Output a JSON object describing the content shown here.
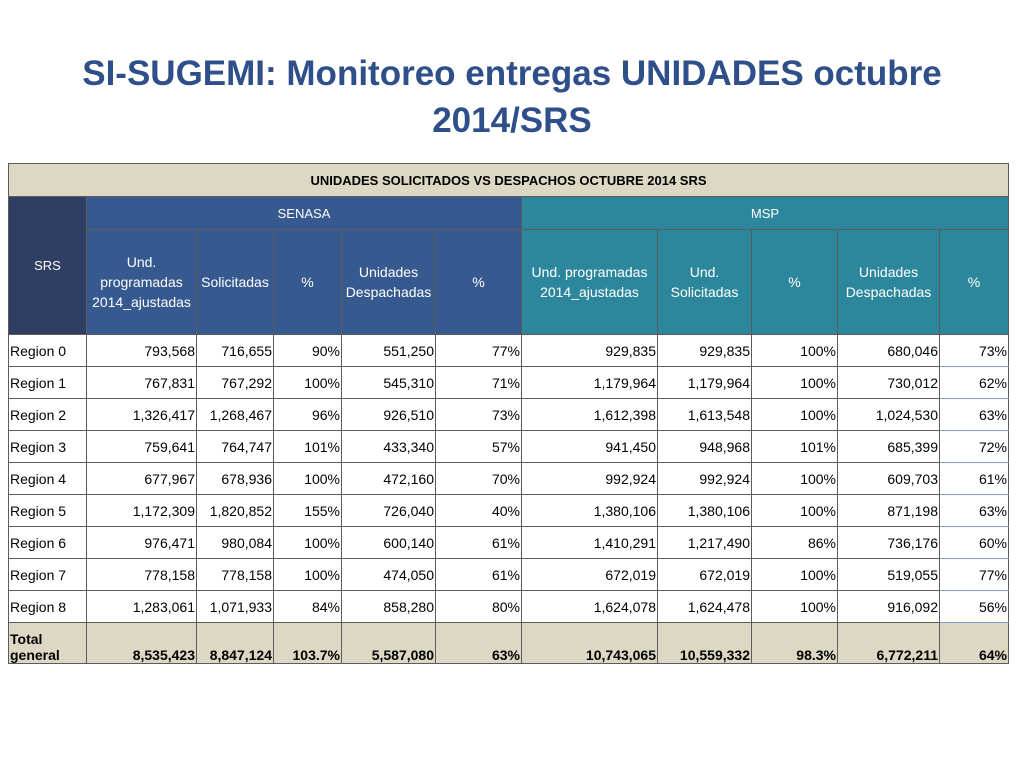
{
  "title": "SI-SUGEMI: Monitoreo entregas UNIDADES octubre 2014/SRS",
  "table": {
    "caption": "UNIDADES SOLICITADOS VS DESPACHOS OCTUBRE 2014 SRS",
    "srs_header": "SRS",
    "groups": {
      "senasa": "SENASA",
      "msp": "MSP"
    },
    "senasa_columns": [
      "Und. programadas 2014_ajustadas",
      "Solicitadas",
      "%",
      "Unidades Despachadas",
      "%"
    ],
    "msp_columns": [
      "Und. programadas 2014_ajustadas",
      "Und. Solicitadas",
      "%",
      "Unidades Despachadas",
      "%"
    ],
    "rows": [
      [
        "Region 0",
        "793,568",
        "716,655",
        "90%",
        "551,250",
        "77%",
        "929,835",
        "929,835",
        "100%",
        "680,046",
        "73%"
      ],
      [
        "Region 1",
        "767,831",
        "767,292",
        "100%",
        "545,310",
        "71%",
        "1,179,964",
        "1,179,964",
        "100%",
        "730,012",
        "62%"
      ],
      [
        "Region 2",
        "1,326,417",
        "1,268,467",
        "96%",
        "926,510",
        "73%",
        "1,612,398",
        "1,613,548",
        "100%",
        "1,024,530",
        "63%"
      ],
      [
        "Region 3",
        "759,641",
        "764,747",
        "101%",
        "433,340",
        "57%",
        "941,450",
        "948,968",
        "101%",
        "685,399",
        "72%"
      ],
      [
        "Region 4",
        "677,967",
        "678,936",
        "100%",
        "472,160",
        "70%",
        "992,924",
        "992,924",
        "100%",
        "609,703",
        "61%"
      ],
      [
        "Region 5",
        "1,172,309",
        "1,820,852",
        "155%",
        "726,040",
        "40%",
        "1,380,106",
        "1,380,106",
        "100%",
        "871,198",
        "63%"
      ],
      [
        "Region 6",
        "976,471",
        "980,084",
        "100%",
        "600,140",
        "61%",
        "1,410,291",
        "1,217,490",
        "86%",
        "736,176",
        "60%"
      ],
      [
        "Region 7",
        "778,158",
        "778,158",
        "100%",
        "474,050",
        "61%",
        "672,019",
        "672,019",
        "100%",
        "519,055",
        "77%"
      ],
      [
        "Region 8",
        "1,283,061",
        "1,071,933",
        "84%",
        "858,280",
        "80%",
        "1,624,078",
        "1,624,478",
        "100%",
        "916,092",
        "56%"
      ]
    ],
    "total": [
      "Total general",
      "8,535,423",
      "8,847,124",
      "103.7%",
      "5,587,080",
      "63%",
      "10,743,065",
      "10,559,332",
      "98.3%",
      "6,772,211",
      "64%"
    ]
  }
}
